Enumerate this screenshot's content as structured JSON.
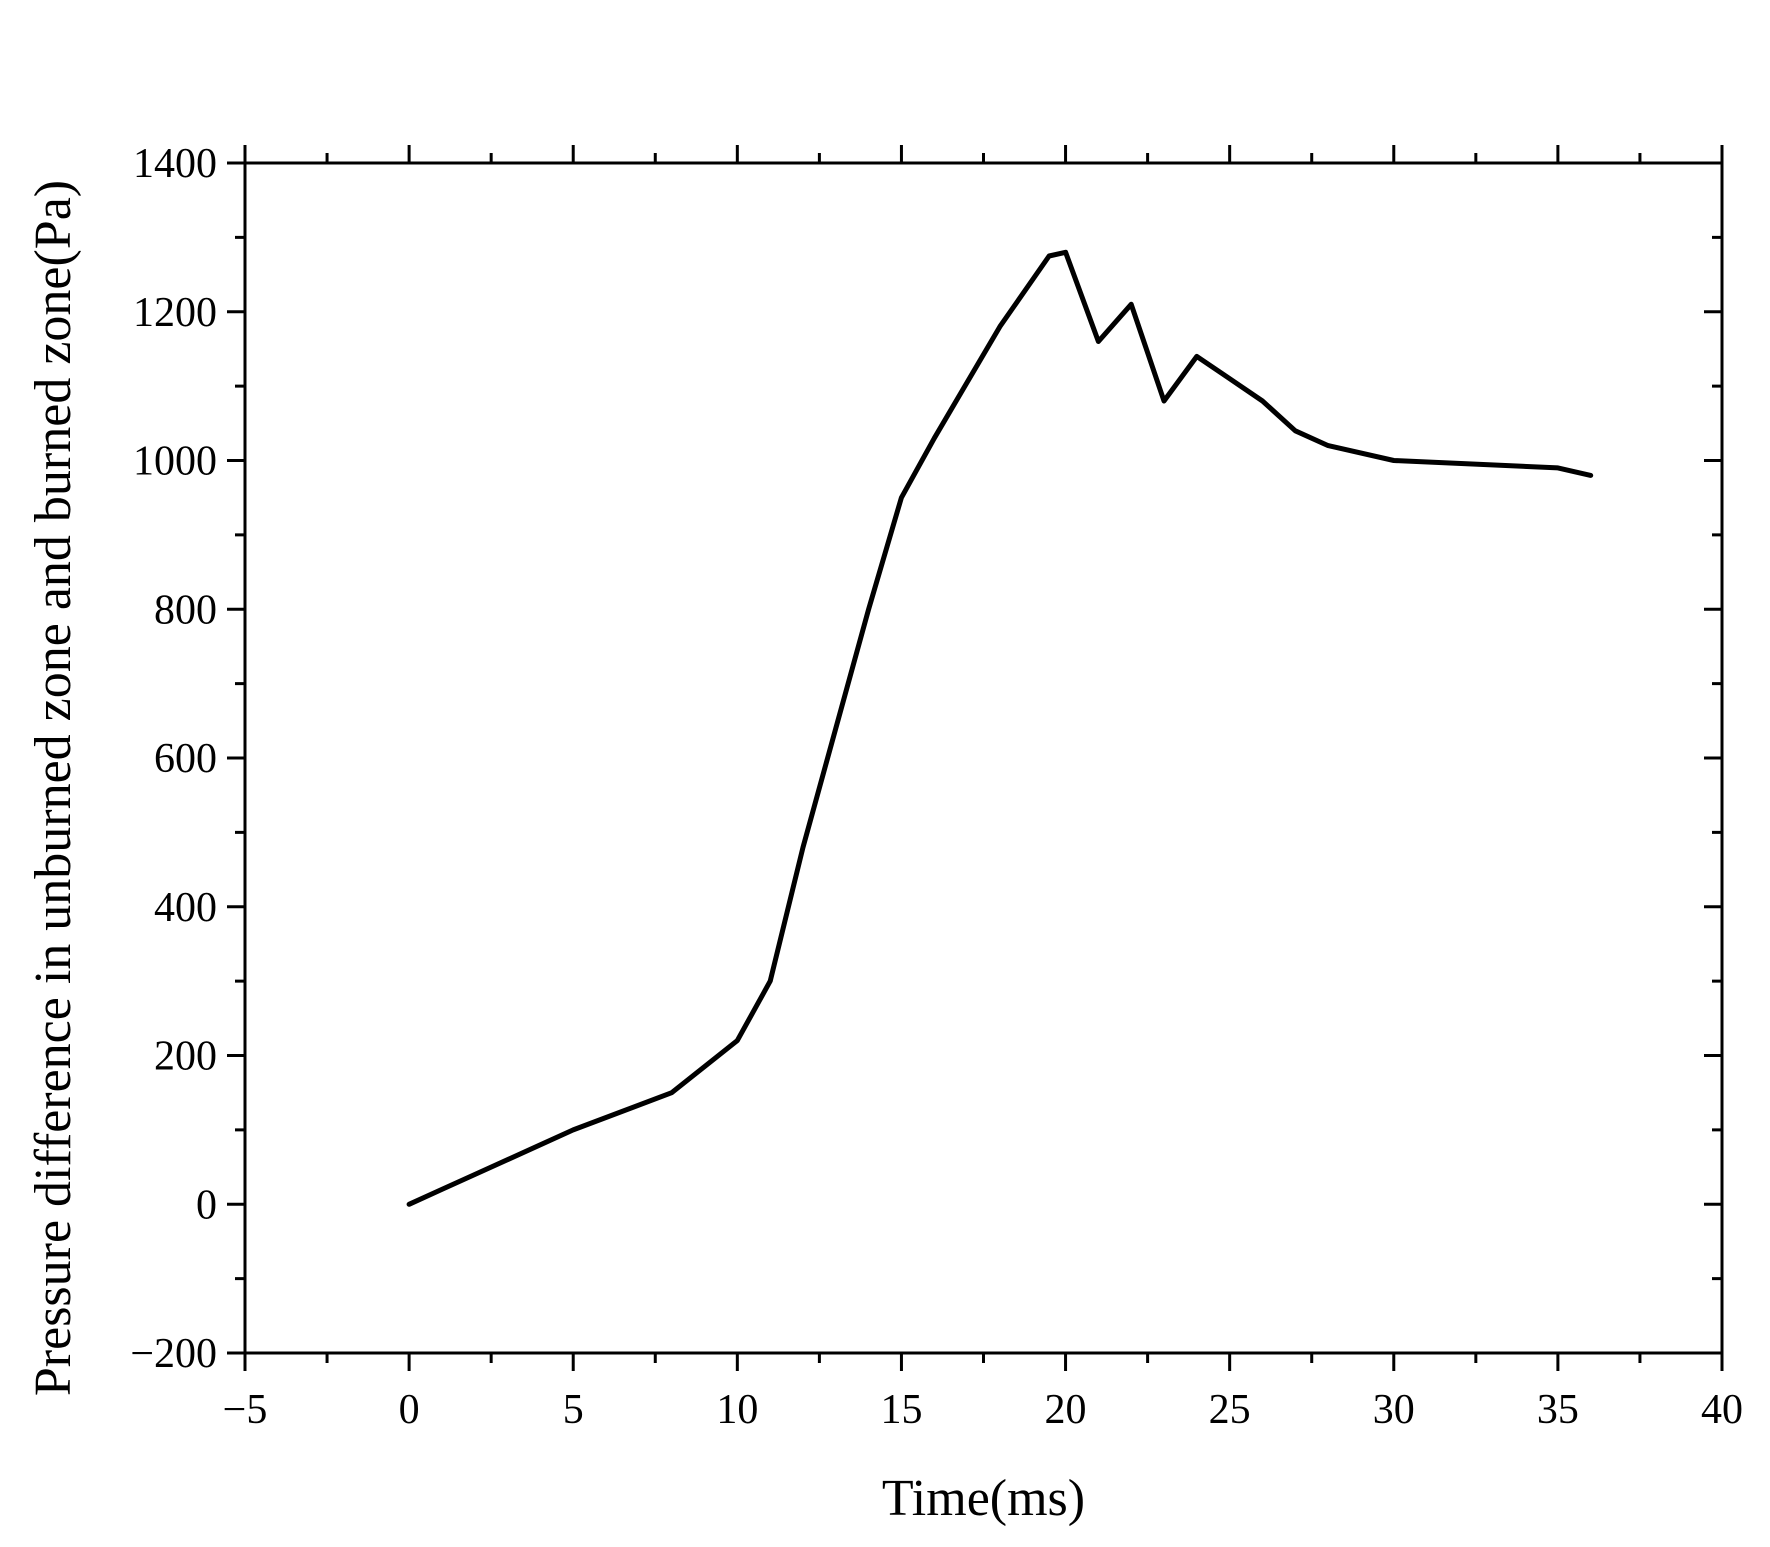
{
  "chart_data": {
    "type": "line",
    "title": "",
    "xlabel": "Time(ms)",
    "ylabel": "Pressure difference in unburned zone and burned zone(Pa)",
    "xlim": [
      -5,
      40
    ],
    "ylim": [
      -200,
      1400
    ],
    "x_ticks": [
      -5,
      0,
      5,
      10,
      15,
      20,
      25,
      30,
      35,
      40
    ],
    "x_tick_labels": [
      "−5",
      "0",
      "5",
      "10",
      "15",
      "20",
      "25",
      "30",
      "35",
      "40"
    ],
    "y_ticks": [
      -200,
      0,
      200,
      400,
      600,
      800,
      1000,
      1200,
      1400
    ],
    "y_tick_labels": [
      "−200",
      "0",
      "200",
      "400",
      "600",
      "800",
      "1000",
      "1200",
      "1400"
    ],
    "grid": false,
    "legend": "none",
    "line_color": "#000000",
    "series": [
      {
        "x": [
          0,
          1,
          2,
          5,
          8,
          10,
          11,
          12,
          13,
          14,
          15,
          16,
          17,
          18,
          19.5,
          20,
          21,
          22,
          23,
          24,
          25,
          26,
          27,
          28,
          30,
          35,
          36
        ],
        "y": [
          0,
          20,
          40,
          100,
          150,
          220,
          300,
          480,
          640,
          800,
          950,
          1030,
          1105,
          1180,
          1275,
          1280,
          1160,
          1210,
          1080,
          1140,
          1110,
          1080,
          1040,
          1020,
          1000,
          990,
          980
        ]
      }
    ]
  }
}
